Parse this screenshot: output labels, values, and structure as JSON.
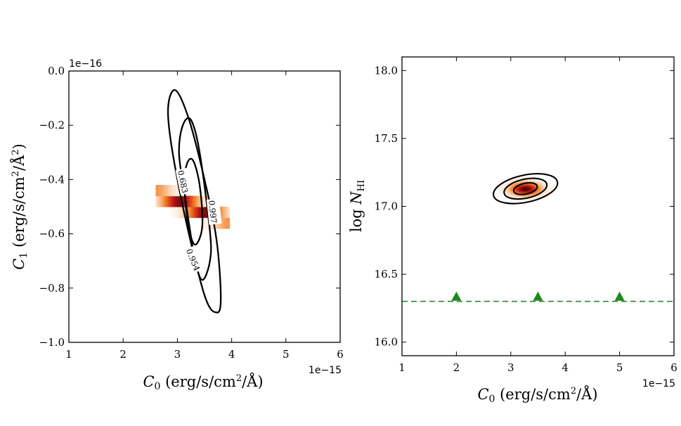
{
  "chart_data": [
    {
      "type": "heatmap",
      "panel": "left",
      "title": "",
      "xlabel": "C_0 (erg/s/cm^2/Å)",
      "ylabel": "C_1 (erg/s/cm^2/Å^2)",
      "xlim": [
        1,
        6
      ],
      "ylim": [
        -1.0,
        0.0
      ],
      "x_ticks": [
        1,
        2,
        3,
        4,
        5,
        6
      ],
      "x_tick_labels": [
        "1",
        "2",
        "3",
        "4",
        "5",
        "6"
      ],
      "y_ticks": [
        -1.0,
        -0.8,
        -0.6,
        -0.4,
        -0.2,
        0.0
      ],
      "y_tick_labels": [
        "−1.0",
        "−0.8",
        "−0.6",
        "−0.4",
        "−0.2",
        "0.0"
      ],
      "x_offset_label": "1e−15",
      "y_offset_label": "1e−16",
      "grid": false,
      "density_peak": {
        "x": 3.28,
        "y": -0.5,
        "sx": 0.17,
        "sy": 0.13,
        "rotation_deg": -70
      },
      "contours": [
        {
          "level": "0.683",
          "label": "0.683",
          "points": [
            [
              3.29,
              -0.33
            ],
            [
              3.41,
              -0.42
            ],
            [
              3.46,
              -0.57
            ],
            [
              3.33,
              -0.64
            ],
            [
              3.2,
              -0.57
            ],
            [
              3.13,
              -0.42
            ],
            [
              3.18,
              -0.34
            ]
          ]
        },
        {
          "level": "0.954",
          "label": "0.954",
          "points": [
            [
              3.25,
              -0.18
            ],
            [
              3.41,
              -0.3
            ],
            [
              3.6,
              -0.59
            ],
            [
              3.6,
              -0.7
            ],
            [
              3.46,
              -0.77
            ],
            [
              3.32,
              -0.69
            ],
            [
              3.13,
              -0.45
            ],
            [
              3.03,
              -0.3
            ],
            [
              3.1,
              -0.2
            ]
          ]
        },
        {
          "level": "0.997",
          "label": "0.997",
          "points": [
            [
              2.95,
              -0.07
            ],
            [
              3.2,
              -0.17
            ],
            [
              3.5,
              -0.4
            ],
            [
              3.72,
              -0.62
            ],
            [
              3.8,
              -0.83
            ],
            [
              3.73,
              -0.89
            ],
            [
              3.49,
              -0.82
            ],
            [
              3.06,
              -0.46
            ],
            [
              2.83,
              -0.17
            ]
          ]
        }
      ]
    },
    {
      "type": "heatmap",
      "panel": "right",
      "title": "",
      "xlabel": "C_0 (erg/s/cm^2/Å)",
      "ylabel": "log N_HI",
      "xlim": [
        1,
        6
      ],
      "ylim": [
        15.9,
        18.1
      ],
      "x_ticks": [
        1,
        2,
        3,
        4,
        5,
        6
      ],
      "x_tick_labels": [
        "1",
        "2",
        "3",
        "4",
        "5",
        "6"
      ],
      "y_ticks": [
        16.0,
        16.5,
        17.0,
        17.5,
        18.0
      ],
      "y_tick_labels": [
        "16.0",
        "16.5",
        "17.0",
        "17.5",
        "18.0"
      ],
      "x_offset_label": "1e−15",
      "grid": false,
      "density_peak": {
        "x": 3.27,
        "y": 17.13,
        "sx": 0.2,
        "sy": 0.035,
        "rotation_deg": 0
      },
      "contours": [
        {
          "level": "0.683",
          "rx": 0.22,
          "ry": 0.04
        },
        {
          "level": "0.954",
          "rx": 0.4,
          "ry": 0.07
        },
        {
          "level": "0.997",
          "rx": 0.6,
          "ry": 0.1
        }
      ],
      "limit_line": {
        "y": 16.3,
        "color": "#2a8a2a",
        "style": "dashed"
      },
      "limit_markers": [
        {
          "x": 2.0,
          "y": 16.3
        },
        {
          "x": 3.5,
          "y": 16.3
        },
        {
          "x": 5.0,
          "y": 16.3
        }
      ]
    }
  ],
  "colors": {
    "contour": "#000000",
    "marker": "#1a8a1a",
    "heat_low": "#fbe0c8",
    "heat_mid": "#f37e22",
    "heat_high": "#c01818",
    "heat_peak": "#4a0808"
  }
}
